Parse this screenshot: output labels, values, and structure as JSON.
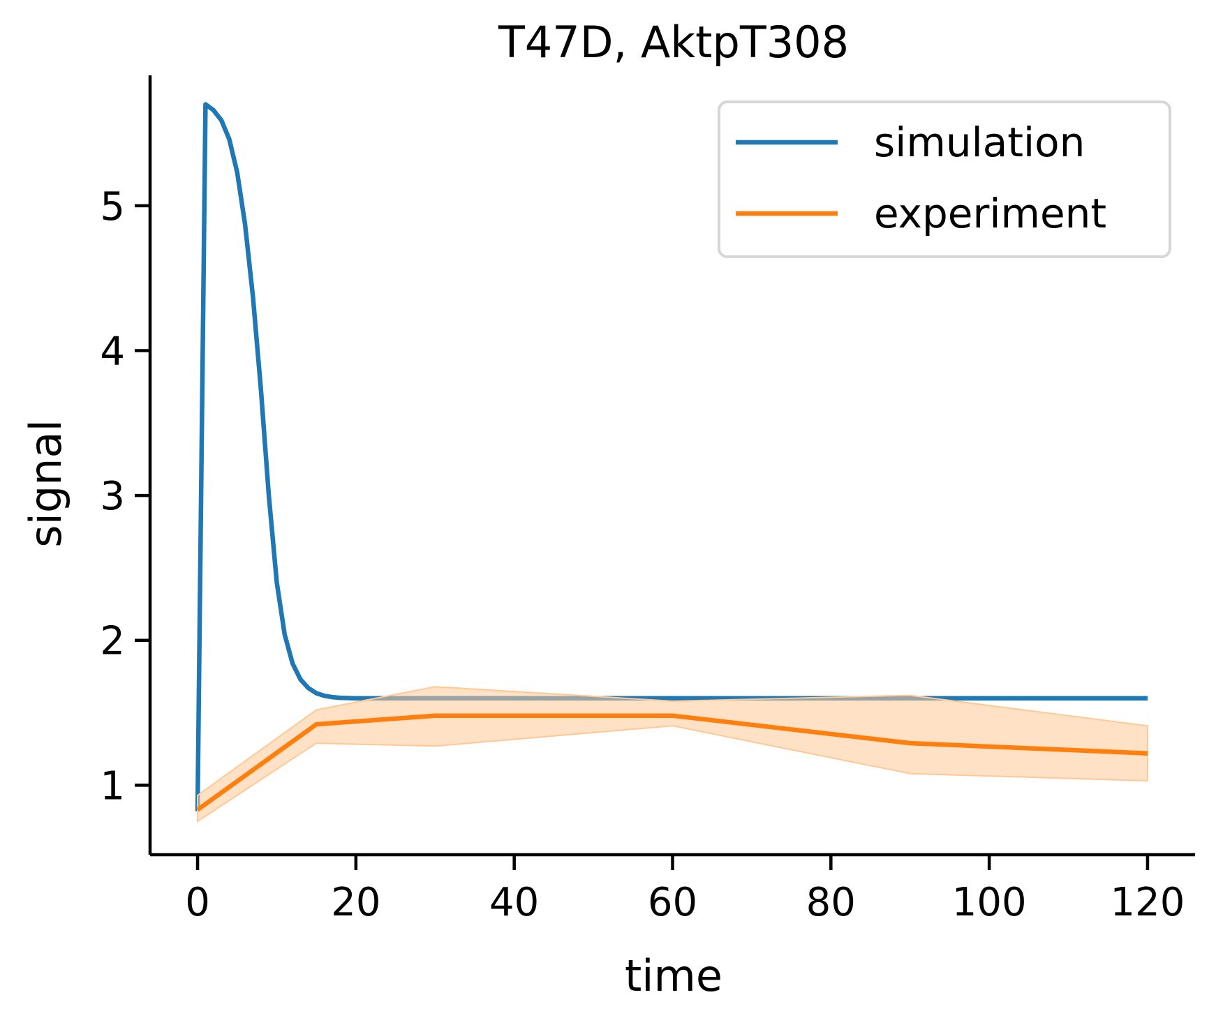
{
  "chart_data": {
    "type": "line",
    "title": "T47D, AktpT308",
    "xlabel": "time",
    "ylabel": "signal",
    "xlim": [
      -6,
      126
    ],
    "ylim": [
      0.52,
      5.9
    ],
    "xticks": [
      0,
      20,
      40,
      60,
      80,
      100,
      120
    ],
    "yticks": [
      1,
      2,
      3,
      4,
      5
    ],
    "grid": false,
    "legend": "top-right",
    "series": [
      {
        "name": "simulation",
        "color": "#1f77b4",
        "x": [
          0,
          1,
          2,
          3,
          4,
          5,
          6,
          7,
          8,
          9,
          10,
          11,
          12,
          13,
          14,
          15,
          16,
          17,
          18,
          20,
          25,
          30,
          60,
          90,
          120
        ],
        "y": [
          0.82,
          5.7,
          5.66,
          5.59,
          5.46,
          5.23,
          4.87,
          4.37,
          3.73,
          3.0,
          2.4,
          2.04,
          1.84,
          1.73,
          1.67,
          1.635,
          1.617,
          1.608,
          1.603,
          1.6,
          1.6,
          1.6,
          1.6,
          1.6,
          1.6
        ]
      },
      {
        "name": "experiment",
        "color": "#ff7f0e",
        "band_color": "#ffc896",
        "x": [
          0,
          15,
          30,
          60,
          90,
          120
        ],
        "y": [
          0.83,
          1.42,
          1.48,
          1.48,
          1.29,
          1.22
        ],
        "lower": [
          0.75,
          1.29,
          1.27,
          1.41,
          1.08,
          1.03
        ],
        "upper": [
          0.93,
          1.52,
          1.68,
          1.58,
          1.62,
          1.41
        ]
      }
    ]
  }
}
